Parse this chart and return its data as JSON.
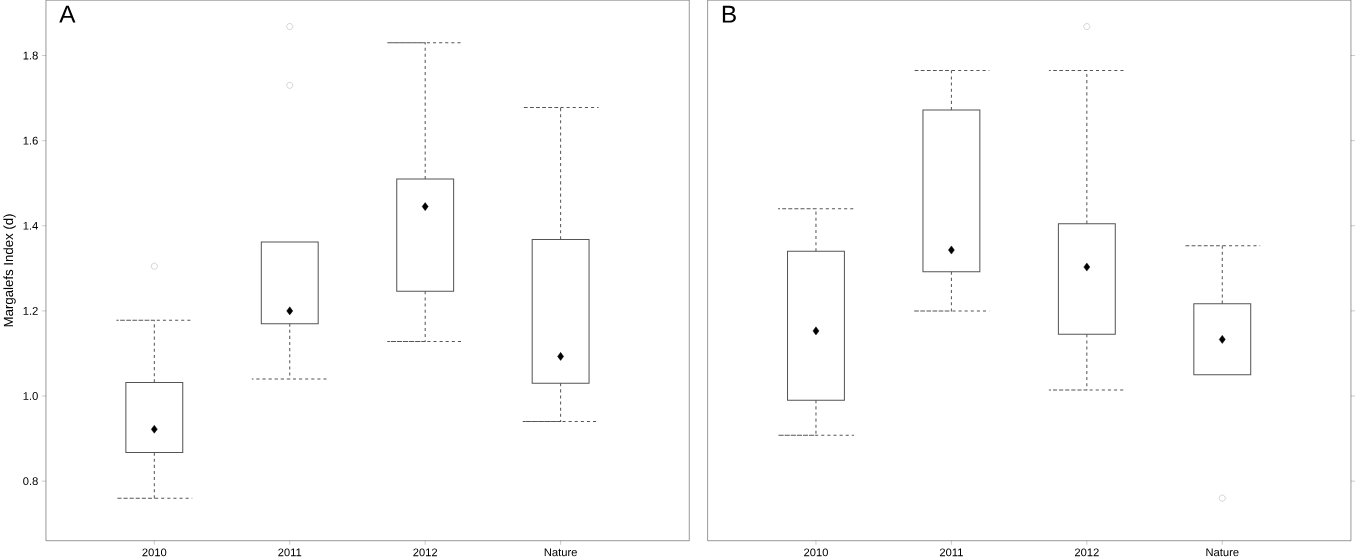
{
  "chart_data": [
    {
      "type": "box",
      "title": "A",
      "ylabel": "Margalefs Index (d)",
      "categories": [
        "2010",
        "2011",
        "2012",
        "Nature"
      ],
      "color": "#555555",
      "ylim": [
        0.66,
        1.93
      ],
      "yticks": [
        0.8,
        {
          "value": 1.0,
          "label": "1.0"
        },
        1.2,
        1.4,
        1.6,
        1.8
      ],
      "boxes": [
        {
          "low": 0.76,
          "q1": 0.867,
          "median": 0.922,
          "q3": 1.032,
          "high": 1.178,
          "outliers": [
            1.305
          ]
        },
        {
          "low": 1.04,
          "q1": 1.17,
          "median": 1.2,
          "q3": 1.362,
          "high": 1.362,
          "outliers": [
            1.73,
            1.868
          ]
        },
        {
          "low": 1.128,
          "q1": 1.246,
          "median": 1.445,
          "q3": 1.51,
          "high": 1.83
        },
        {
          "low": 0.94,
          "q1": 1.03,
          "median": 1.093,
          "q3": 1.368,
          "high": 1.678
        }
      ]
    },
    {
      "type": "box",
      "title": "B",
      "categories": [
        "2010",
        "2011",
        "2012",
        "Nature"
      ],
      "color": "#555555",
      "ylim": [
        0.66,
        1.93
      ],
      "yticks": [
        0.8,
        1.0,
        1.2,
        1.4,
        1.6,
        1.8
      ],
      "tick_labels": "x",
      "boxes": [
        {
          "low": 0.908,
          "q1": 0.99,
          "median": 1.153,
          "q3": 1.34,
          "high": 1.44
        },
        {
          "low": 1.2,
          "q1": 1.292,
          "median": 1.343,
          "q3": 1.672,
          "high": 1.765
        },
        {
          "low": 1.014,
          "q1": 1.145,
          "median": 1.303,
          "q3": 1.405,
          "high": 1.765,
          "outliers": [
            1.868
          ]
        },
        {
          "low": 1.05,
          "q1": 1.05,
          "median": 1.133,
          "q3": 1.217,
          "high": 1.353,
          "outliers": [
            0.76
          ]
        }
      ]
    }
  ]
}
